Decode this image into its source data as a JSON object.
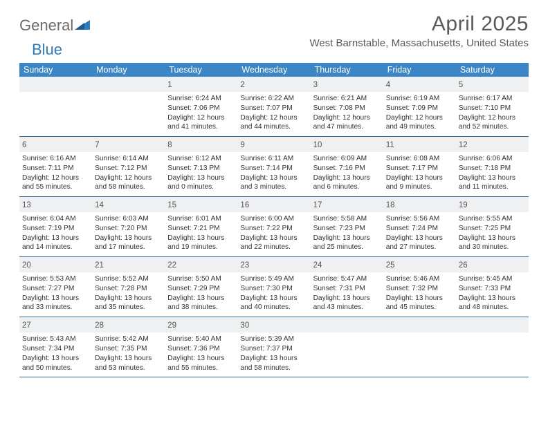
{
  "logo": {
    "word1": "General",
    "word2": "Blue"
  },
  "title": "April 2025",
  "location": "West Barnstable, Massachusetts, United States",
  "colors": {
    "header_bg": "#3b86c7",
    "header_text": "#ffffff",
    "daynum_bg": "#eef0f2",
    "week_border": "#2f6aa0",
    "title_color": "#5a5a5a",
    "logo_gray": "#6b6b6b",
    "logo_blue": "#2f7bbf"
  },
  "day_headers": [
    "Sunday",
    "Monday",
    "Tuesday",
    "Wednesday",
    "Thursday",
    "Friday",
    "Saturday"
  ],
  "weeks": [
    [
      null,
      null,
      {
        "n": "1",
        "sr": "Sunrise: 6:24 AM",
        "ss": "Sunset: 7:06 PM",
        "d1": "Daylight: 12 hours",
        "d2": "and 41 minutes."
      },
      {
        "n": "2",
        "sr": "Sunrise: 6:22 AM",
        "ss": "Sunset: 7:07 PM",
        "d1": "Daylight: 12 hours",
        "d2": "and 44 minutes."
      },
      {
        "n": "3",
        "sr": "Sunrise: 6:21 AM",
        "ss": "Sunset: 7:08 PM",
        "d1": "Daylight: 12 hours",
        "d2": "and 47 minutes."
      },
      {
        "n": "4",
        "sr": "Sunrise: 6:19 AM",
        "ss": "Sunset: 7:09 PM",
        "d1": "Daylight: 12 hours",
        "d2": "and 49 minutes."
      },
      {
        "n": "5",
        "sr": "Sunrise: 6:17 AM",
        "ss": "Sunset: 7:10 PM",
        "d1": "Daylight: 12 hours",
        "d2": "and 52 minutes."
      }
    ],
    [
      {
        "n": "6",
        "sr": "Sunrise: 6:16 AM",
        "ss": "Sunset: 7:11 PM",
        "d1": "Daylight: 12 hours",
        "d2": "and 55 minutes."
      },
      {
        "n": "7",
        "sr": "Sunrise: 6:14 AM",
        "ss": "Sunset: 7:12 PM",
        "d1": "Daylight: 12 hours",
        "d2": "and 58 minutes."
      },
      {
        "n": "8",
        "sr": "Sunrise: 6:12 AM",
        "ss": "Sunset: 7:13 PM",
        "d1": "Daylight: 13 hours",
        "d2": "and 0 minutes."
      },
      {
        "n": "9",
        "sr": "Sunrise: 6:11 AM",
        "ss": "Sunset: 7:14 PM",
        "d1": "Daylight: 13 hours",
        "d2": "and 3 minutes."
      },
      {
        "n": "10",
        "sr": "Sunrise: 6:09 AM",
        "ss": "Sunset: 7:16 PM",
        "d1": "Daylight: 13 hours",
        "d2": "and 6 minutes."
      },
      {
        "n": "11",
        "sr": "Sunrise: 6:08 AM",
        "ss": "Sunset: 7:17 PM",
        "d1": "Daylight: 13 hours",
        "d2": "and 9 minutes."
      },
      {
        "n": "12",
        "sr": "Sunrise: 6:06 AM",
        "ss": "Sunset: 7:18 PM",
        "d1": "Daylight: 13 hours",
        "d2": "and 11 minutes."
      }
    ],
    [
      {
        "n": "13",
        "sr": "Sunrise: 6:04 AM",
        "ss": "Sunset: 7:19 PM",
        "d1": "Daylight: 13 hours",
        "d2": "and 14 minutes."
      },
      {
        "n": "14",
        "sr": "Sunrise: 6:03 AM",
        "ss": "Sunset: 7:20 PM",
        "d1": "Daylight: 13 hours",
        "d2": "and 17 minutes."
      },
      {
        "n": "15",
        "sr": "Sunrise: 6:01 AM",
        "ss": "Sunset: 7:21 PM",
        "d1": "Daylight: 13 hours",
        "d2": "and 19 minutes."
      },
      {
        "n": "16",
        "sr": "Sunrise: 6:00 AM",
        "ss": "Sunset: 7:22 PM",
        "d1": "Daylight: 13 hours",
        "d2": "and 22 minutes."
      },
      {
        "n": "17",
        "sr": "Sunrise: 5:58 AM",
        "ss": "Sunset: 7:23 PM",
        "d1": "Daylight: 13 hours",
        "d2": "and 25 minutes."
      },
      {
        "n": "18",
        "sr": "Sunrise: 5:56 AM",
        "ss": "Sunset: 7:24 PM",
        "d1": "Daylight: 13 hours",
        "d2": "and 27 minutes."
      },
      {
        "n": "19",
        "sr": "Sunrise: 5:55 AM",
        "ss": "Sunset: 7:25 PM",
        "d1": "Daylight: 13 hours",
        "d2": "and 30 minutes."
      }
    ],
    [
      {
        "n": "20",
        "sr": "Sunrise: 5:53 AM",
        "ss": "Sunset: 7:27 PM",
        "d1": "Daylight: 13 hours",
        "d2": "and 33 minutes."
      },
      {
        "n": "21",
        "sr": "Sunrise: 5:52 AM",
        "ss": "Sunset: 7:28 PM",
        "d1": "Daylight: 13 hours",
        "d2": "and 35 minutes."
      },
      {
        "n": "22",
        "sr": "Sunrise: 5:50 AM",
        "ss": "Sunset: 7:29 PM",
        "d1": "Daylight: 13 hours",
        "d2": "and 38 minutes."
      },
      {
        "n": "23",
        "sr": "Sunrise: 5:49 AM",
        "ss": "Sunset: 7:30 PM",
        "d1": "Daylight: 13 hours",
        "d2": "and 40 minutes."
      },
      {
        "n": "24",
        "sr": "Sunrise: 5:47 AM",
        "ss": "Sunset: 7:31 PM",
        "d1": "Daylight: 13 hours",
        "d2": "and 43 minutes."
      },
      {
        "n": "25",
        "sr": "Sunrise: 5:46 AM",
        "ss": "Sunset: 7:32 PM",
        "d1": "Daylight: 13 hours",
        "d2": "and 45 minutes."
      },
      {
        "n": "26",
        "sr": "Sunrise: 5:45 AM",
        "ss": "Sunset: 7:33 PM",
        "d1": "Daylight: 13 hours",
        "d2": "and 48 minutes."
      }
    ],
    [
      {
        "n": "27",
        "sr": "Sunrise: 5:43 AM",
        "ss": "Sunset: 7:34 PM",
        "d1": "Daylight: 13 hours",
        "d2": "and 50 minutes."
      },
      {
        "n": "28",
        "sr": "Sunrise: 5:42 AM",
        "ss": "Sunset: 7:35 PM",
        "d1": "Daylight: 13 hours",
        "d2": "and 53 minutes."
      },
      {
        "n": "29",
        "sr": "Sunrise: 5:40 AM",
        "ss": "Sunset: 7:36 PM",
        "d1": "Daylight: 13 hours",
        "d2": "and 55 minutes."
      },
      {
        "n": "30",
        "sr": "Sunrise: 5:39 AM",
        "ss": "Sunset: 7:37 PM",
        "d1": "Daylight: 13 hours",
        "d2": "and 58 minutes."
      },
      null,
      null,
      null
    ]
  ]
}
